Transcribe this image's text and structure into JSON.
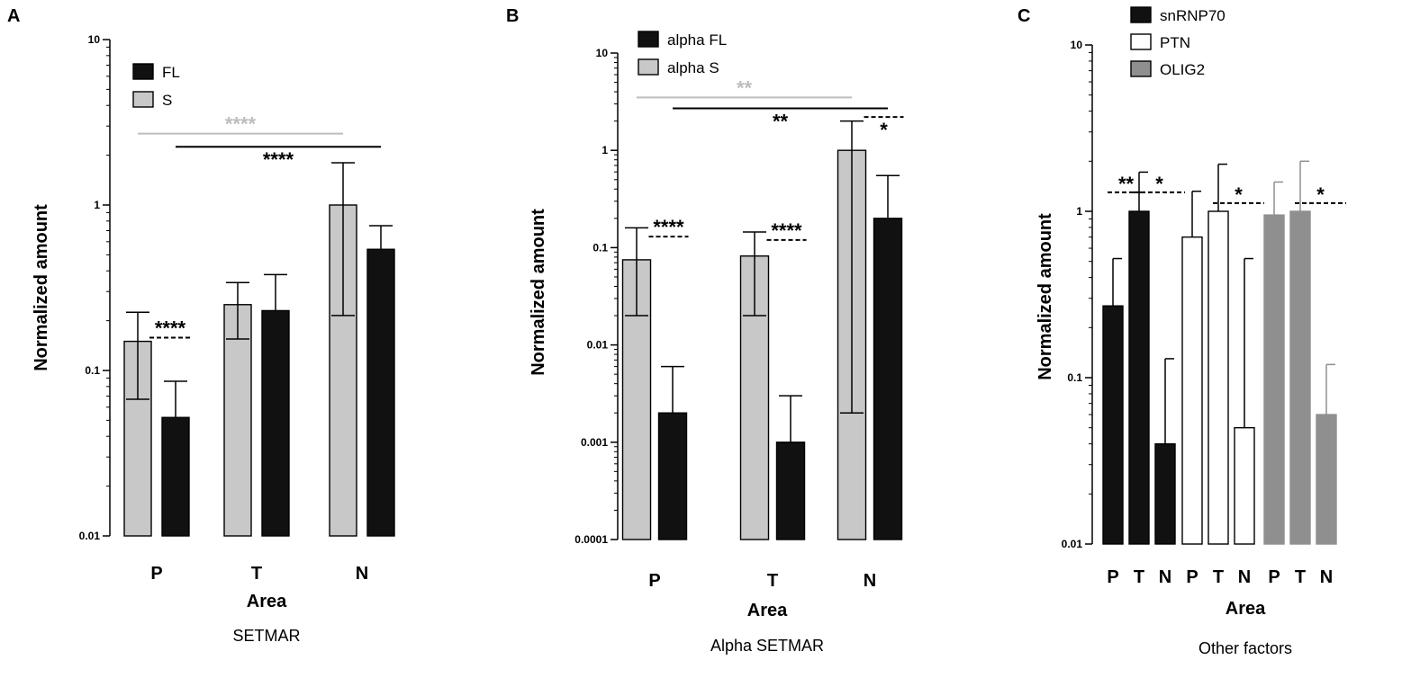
{
  "colors": {
    "black_bar": "#111111",
    "gray_bar": "#c8c8c8",
    "white_bar": "#ffffff",
    "olig_bar": "#8f8f8f",
    "sig_gray": "#bdbdbd",
    "sig_black": "#000000"
  },
  "chart_data": [
    {
      "panel": "A",
      "type": "bar",
      "scale": "log",
      "title": "SETMAR",
      "xlabel": "Area",
      "ylabel": "Normalized amount",
      "ylim": [
        0.01,
        10
      ],
      "yticks": [
        {
          "v": 10,
          "label": "10"
        },
        {
          "v": 1,
          "label": "1"
        },
        {
          "v": 0.1,
          "label": "0.1"
        },
        {
          "v": 0.01,
          "label": "0.01"
        }
      ],
      "categories": [
        "P",
        "T",
        "N"
      ],
      "series": [
        {
          "name": "FL",
          "color": "#111111",
          "values": [
            0.052,
            0.23,
            0.54
          ],
          "err_high": [
            0.086,
            0.38,
            0.75
          ]
        },
        {
          "name": "S",
          "color": "#c8c8c8",
          "values": [
            0.15,
            0.25,
            1.0
          ],
          "err_high": [
            0.225,
            0.34,
            1.8
          ],
          "err_low": [
            0.067,
            0.155,
            0.215
          ]
        }
      ],
      "series_order": [
        1,
        0
      ],
      "legend": [
        {
          "name": "FL",
          "color": "#111111"
        },
        {
          "name": "S",
          "color": "#c8c8c8"
        }
      ],
      "sig_lines": [
        {
          "from": 0,
          "to": 2,
          "slot": 0,
          "y": 2.7,
          "label": "****",
          "color": "#bdbdbd",
          "style": "solid"
        },
        {
          "from": 0,
          "to": 2,
          "slot": 1,
          "y": 2.25,
          "label": "****",
          "color": "#000000",
          "style": "solid",
          "label_pos": "below"
        },
        {
          "group": 0,
          "y": 0.158,
          "label": "****",
          "color": "#000000",
          "style": "dashed"
        }
      ]
    },
    {
      "panel": "B",
      "type": "bar",
      "scale": "log",
      "title": "Alpha SETMAR",
      "xlabel": "Area",
      "ylabel": "Normalized amount",
      "ylim": [
        0.0001,
        10
      ],
      "yticks": [
        {
          "v": 10,
          "label": "10"
        },
        {
          "v": 1,
          "label": "1"
        },
        {
          "v": 0.1,
          "label": "0.1"
        },
        {
          "v": 0.01,
          "label": "0.01"
        },
        {
          "v": 0.001,
          "label": "0.001"
        },
        {
          "v": 0.0001,
          "label": "0.0001"
        }
      ],
      "categories": [
        "P",
        "T",
        "N"
      ],
      "series": [
        {
          "name": "alpha FL",
          "color": "#111111",
          "values": [
            0.002,
            0.001,
            0.2
          ],
          "err_high": [
            0.006,
            0.003,
            0.55
          ]
        },
        {
          "name": "alpha S",
          "color": "#c8c8c8",
          "values": [
            0.075,
            0.082,
            1.0
          ],
          "err_high": [
            0.16,
            0.145,
            2.0
          ],
          "err_low": [
            0.02,
            0.02,
            0.002
          ]
        }
      ],
      "series_order": [
        1,
        0
      ],
      "legend": [
        {
          "name": "alpha FL",
          "color": "#111111"
        },
        {
          "name": "alpha S",
          "color": "#c8c8c8"
        }
      ],
      "sig_lines": [
        {
          "from": 0,
          "to": 2,
          "slot": 0,
          "y": 3.5,
          "label": "**",
          "color": "#bdbdbd",
          "style": "solid"
        },
        {
          "from": 0,
          "to": 2,
          "slot": 1,
          "y": 2.7,
          "label": "**",
          "color": "#000000",
          "style": "solid",
          "label_pos": "below"
        },
        {
          "group": 0,
          "y": 0.13,
          "label": "****",
          "color": "#000000",
          "style": "dashed"
        },
        {
          "group": 1,
          "y": 0.12,
          "label": "****",
          "color": "#000000",
          "style": "dashed"
        },
        {
          "group": 2,
          "y": 2.2,
          "label": "*",
          "color": "#000000",
          "style": "dashed",
          "label_pos": "below"
        }
      ]
    },
    {
      "panel": "C",
      "type": "bar",
      "scale": "log",
      "title": "Other factors",
      "xlabel": "Area",
      "ylabel": "Normalized amount",
      "ylim": [
        0.01,
        10
      ],
      "yticks": [
        {
          "v": 10,
          "label": "10"
        },
        {
          "v": 1,
          "label": "1"
        },
        {
          "v": 0.1,
          "label": "0.1"
        },
        {
          "v": 0.01,
          "label": "0.01"
        }
      ],
      "groups": [
        {
          "name": "snRNP70",
          "color": "#111111",
          "categories": [
            "P",
            "T",
            "N"
          ],
          "values": [
            0.27,
            1.0,
            0.04
          ],
          "err_high": [
            0.52,
            1.72,
            0.13
          ]
        },
        {
          "name": "PTN",
          "color": "#ffffff",
          "categories": [
            "P",
            "T",
            "N"
          ],
          "values": [
            0.7,
            1.0,
            0.05
          ],
          "err_high": [
            1.32,
            1.92,
            0.52
          ]
        },
        {
          "name": "OLIG2",
          "color": "#8f8f8f",
          "categories": [
            "P",
            "T",
            "N"
          ],
          "values": [
            0.95,
            1.0,
            0.06
          ],
          "err_high": [
            1.5,
            2.0,
            0.12
          ]
        }
      ],
      "legend": [
        {
          "name": "snRNP70",
          "color": "#111111"
        },
        {
          "name": "PTN",
          "color": "#ffffff"
        },
        {
          "name": "OLIG2",
          "color": "#8f8f8f"
        }
      ],
      "sig_lines": [
        {
          "group": 0,
          "from": 0,
          "to": 1,
          "y": 1.3,
          "label": "**"
        },
        {
          "group": 0,
          "from": 1,
          "to": 2,
          "y": 1.3,
          "label": "*"
        },
        {
          "group": 1,
          "from": 1,
          "to": 2,
          "y": 1.12,
          "label": "*"
        },
        {
          "group": 2,
          "from": 1,
          "to": 2,
          "y": 1.12,
          "label": "*"
        }
      ]
    }
  ]
}
